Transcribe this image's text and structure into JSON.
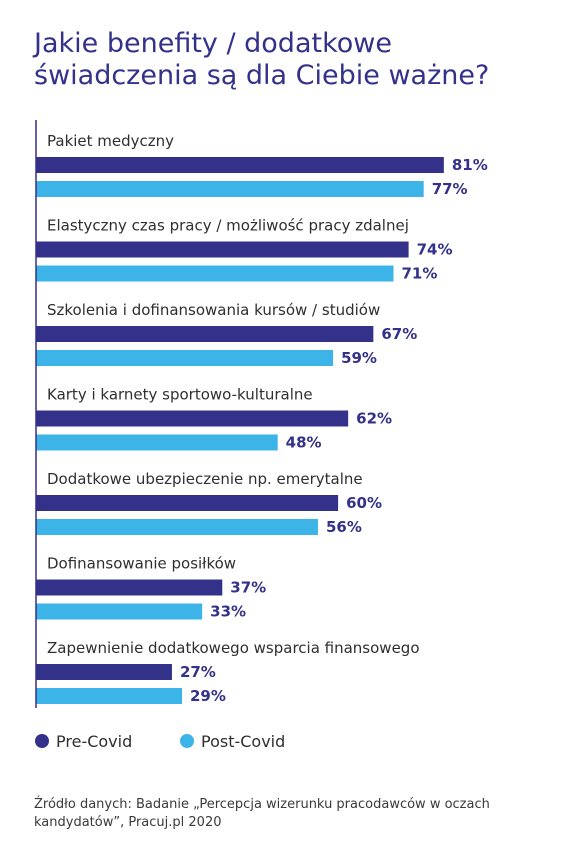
{
  "title": "Jakie benefity / dodatkowe świadczenia są dla Ciebie ważne?",
  "source": "Źródło danych: Badanie „Percepcja wizerunku pracodawców w oczach kandydatów”, Pracuj.pl 2020",
  "colors": {
    "pre": "#33318a",
    "post": "#3cb4e7",
    "axis": "#33318a"
  },
  "chart_data": {
    "type": "bar",
    "orientation": "horizontal",
    "categories": [
      "Pakiet medyczny",
      "Elastyczny czas pracy / możliwość pracy zdalnej",
      "Szkolenia i dofinansowania kursów / studiów",
      "Karty i karnety sportowo-kulturalne",
      "Dodatkowe ubezpieczenie np. emerytalne",
      "Dofinansowanie posiłków",
      "Zapewnienie dodatkowego wsparcia finansowego"
    ],
    "series": [
      {
        "name": "Pre-Covid",
        "values": [
          81,
          74,
          67,
          62,
          60,
          37,
          27
        ],
        "labels": [
          "81%",
          "74%",
          "67%",
          "62%",
          "60%",
          "37%",
          "27%"
        ]
      },
      {
        "name": "Post-Covid",
        "values": [
          77,
          71,
          59,
          48,
          56,
          33,
          29
        ],
        "labels": [
          "77%",
          "71%",
          "59%",
          "48%",
          "56%",
          "33%",
          "29%"
        ]
      }
    ],
    "xlim": [
      0,
      100
    ],
    "legend_position": "bottom-left",
    "grid": false
  }
}
